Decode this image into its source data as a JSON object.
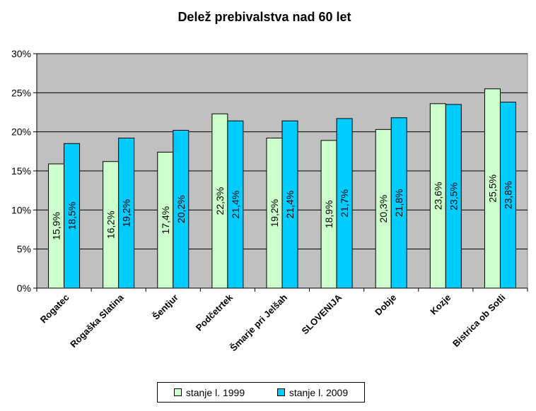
{
  "chart_data": {
    "type": "bar",
    "title": "Delež prebivalstva nad 60 let",
    "categories": [
      "Rogatec",
      "Rogaška Slatina",
      "Šentjur",
      "Podčetrtek",
      "Šmarje pri Jelšah",
      "SLOVENIJA",
      "Dobje",
      "Kozje",
      "Bistrica ob Sotli"
    ],
    "series": [
      {
        "name": "stanje l. 1999",
        "color": "#ccffcc",
        "values": [
          15.9,
          16.2,
          17.4,
          22.3,
          19.2,
          18.9,
          20.3,
          23.6,
          25.5
        ],
        "labels": [
          "15,9%",
          "16,2%",
          "17,4%",
          "22,3%",
          "19,2%",
          "18,9%",
          "20,3%",
          "23,6%",
          "25,5%"
        ]
      },
      {
        "name": "stanje l. 2009",
        "color": "#00ccff",
        "values": [
          18.5,
          19.2,
          20.2,
          21.4,
          21.4,
          21.7,
          21.8,
          23.5,
          23.8
        ],
        "labels": [
          "18,5%",
          "19,2%",
          "20,2%",
          "21,4%",
          "21,4%",
          "21,7%",
          "21,8%",
          "23,5%",
          "23,8%"
        ]
      }
    ],
    "ylim": [
      0,
      30
    ],
    "yticks": [
      "0%",
      "5%",
      "10%",
      "15%",
      "20%",
      "25%",
      "30%"
    ],
    "ytick_values": [
      0,
      5,
      10,
      15,
      20,
      25,
      30
    ],
    "grid": true,
    "plot_background": "#c0c0c0",
    "legend_position": "bottom",
    "xlabel": "",
    "ylabel": ""
  }
}
